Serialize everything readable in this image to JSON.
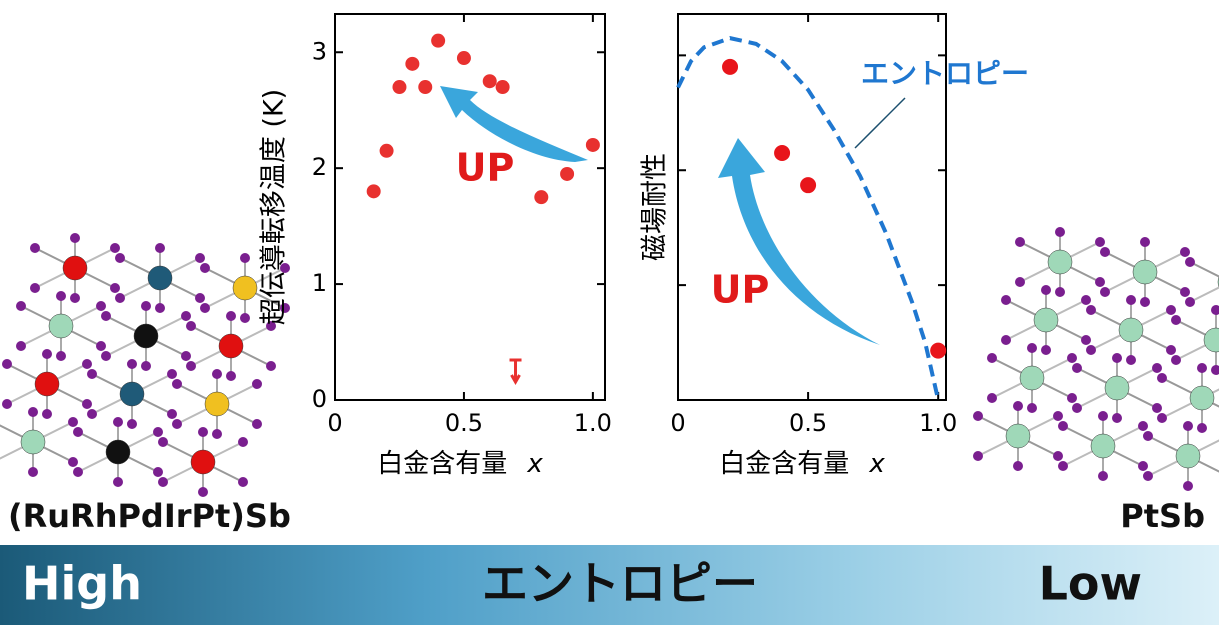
{
  "chart_data": [
    {
      "type": "scatter",
      "xlabel": "白金含有量",
      "xlabel_var": "x",
      "ylabel": "超伝導転移温度 (K)",
      "xlim": [
        0,
        1.047
      ],
      "ylim": [
        0,
        3.33
      ],
      "xticks": [
        0,
        0.5,
        {
          "value": 1,
          "label": "1.0"
        }
      ],
      "yticks": [
        0,
        1,
        2,
        3
      ],
      "series": [
        {
          "color": "#e8312f",
          "x": [
            0.15,
            0.2,
            0.25,
            0.3,
            0.35,
            0.4,
            0.5,
            0.6,
            0.65,
            0.8,
            0.9,
            1.0
          ],
          "values": [
            1.8,
            2.15,
            2.7,
            2.9,
            2.7,
            3.1,
            2.95,
            2.75,
            2.7,
            1.75,
            1.95,
            2.2
          ]
        }
      ],
      "upper_limit": {
        "x": 0.7,
        "y": 0.25
      },
      "annotation": "UP"
    },
    {
      "type": "scatter",
      "xlabel": "白金含有量",
      "xlabel_var": "x",
      "ylabel": "磁場耐性",
      "xlim": [
        0,
        1.03
      ],
      "ylim": [
        0,
        3.36
      ],
      "xticks": [
        0,
        0.5,
        {
          "value": 1,
          "label": "1.0"
        }
      ],
      "yticks": [
        1,
        2,
        3
      ],
      "ytick_labels": false,
      "series": [
        {
          "color": "#e8151b",
          "x": [
            0.2,
            0.4,
            0.5,
            1.0
          ],
          "values": [
            2.9,
            2.15,
            1.87,
            0.43
          ]
        },
        {
          "name": "エントロピー",
          "style": "dashed",
          "color": "#1f77d0",
          "x": [
            0,
            0.05,
            0.1,
            0.2,
            0.3,
            0.4,
            0.5,
            0.6,
            0.7,
            0.8,
            0.9,
            0.95,
            1.0
          ],
          "values": [
            2.72,
            2.95,
            3.07,
            3.15,
            3.1,
            2.95,
            2.7,
            2.35,
            1.95,
            1.45,
            0.85,
            0.5,
            0
          ]
        }
      ],
      "annotation": "UP"
    }
  ],
  "compounds": {
    "left": "(RuRhPdIrPt)Sb",
    "right": "PtSb"
  },
  "banner": {
    "left": "High",
    "center": "エントロピー",
    "right": "Low"
  }
}
